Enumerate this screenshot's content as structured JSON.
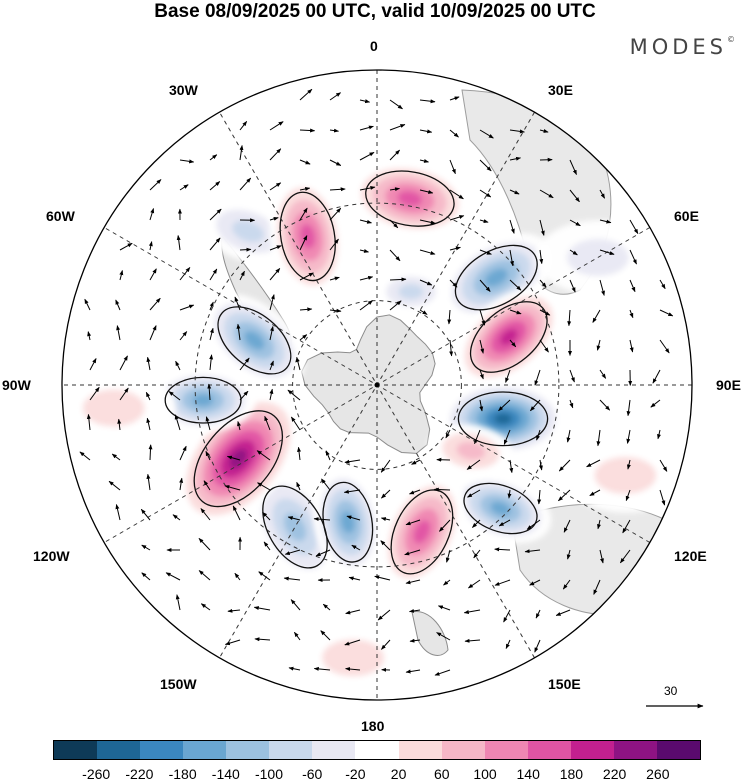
{
  "header": {
    "title": "Base 08/09/2025 00 UTC, valid 10/09/2025 00 UTC",
    "brand": "MODES",
    "brand_mark": "©"
  },
  "map": {
    "projection": "south-polar-stereographic",
    "meridian_labels": {
      "top": "0",
      "bottom": "180",
      "left": "90W",
      "right": "90E",
      "w30": "30W",
      "e30": "30E",
      "w60": "60W",
      "e60": "60E",
      "w120": "120W",
      "e120": "120E",
      "w150": "150W",
      "e150": "150E"
    },
    "wind_reference": {
      "label": "30"
    }
  },
  "colors": {
    "land": "#e6e6e6",
    "coast": "#8c8c8c",
    "contour": "#111111",
    "grid": "#333333"
  },
  "colorbar": {
    "colors": [
      "#0e3a57",
      "#1e6695",
      "#3b87bf",
      "#6aa6d1",
      "#9cc1e0",
      "#c8d8ec",
      "#e8e8f3",
      "#ffffff",
      "#fbdcdc",
      "#f6b7c7",
      "#ef86b2",
      "#e054a4",
      "#c2208f",
      "#8e1383",
      "#5a0a6e"
    ],
    "tick_labels": [
      "-260",
      "-220",
      "-180",
      "-140",
      "-100",
      "-60",
      "-20",
      "20",
      "60",
      "100",
      "140",
      "180",
      "220",
      "260"
    ]
  },
  "anomalies": [
    {
      "lon": 10,
      "lat": -28,
      "value": 160,
      "size": 1.0,
      "rot": 10
    },
    {
      "lon": 48,
      "lat": -36,
      "value": -170,
      "size": 1.0,
      "rot": -30
    },
    {
      "lon": 20,
      "lat": -55,
      "value": -60,
      "size": 0.6,
      "rot": 0
    },
    {
      "lon": 70,
      "lat": -42,
      "value": 200,
      "size": 1.0,
      "rot": -40
    },
    {
      "lon": 105,
      "lat": -45,
      "value": -250,
      "size": 1.0,
      "rot": 0
    },
    {
      "lon": 125,
      "lat": -50,
      "value": 90,
      "size": 0.7,
      "rot": 10
    },
    {
      "lon": 135,
      "lat": -32,
      "value": -160,
      "size": 0.85,
      "rot": 20
    },
    {
      "lon": 163,
      "lat": -38,
      "value": 170,
      "size": 1.0,
      "rot": -65
    },
    {
      "lon": -150,
      "lat": -35,
      "value": -120,
      "size": 1.0,
      "rot": 60
    },
    {
      "lon": -168,
      "lat": -42,
      "value": -140,
      "size": 0.9,
      "rot": 80
    },
    {
      "lon": -118,
      "lat": -37,
      "value": 240,
      "size": 1.25,
      "rot": -50
    },
    {
      "lon": -95,
      "lat": -32,
      "value": -150,
      "size": 0.85,
      "rot": 0
    },
    {
      "lon": -70,
      "lat": -45,
      "value": -150,
      "size": 0.95,
      "rot": 40
    },
    {
      "lon": -40,
      "lat": -25,
      "value": -80,
      "size": 0.8,
      "rot": 20
    },
    {
      "lon": -25,
      "lat": -35,
      "value": 170,
      "size": 1.0,
      "rot": 80
    },
    {
      "lon": -95,
      "lat": -10,
      "value": 40,
      "size": 1.0,
      "rot": 0
    },
    {
      "lon": 110,
      "lat": -10,
      "value": 40,
      "size": 1.0,
      "rot": 0
    },
    {
      "lon": -175,
      "lat": -8,
      "value": 40,
      "size": 1.0,
      "rot": 0
    },
    {
      "lon": 60,
      "lat": -12,
      "value": -40,
      "size": 1.0,
      "rot": 0
    }
  ]
}
